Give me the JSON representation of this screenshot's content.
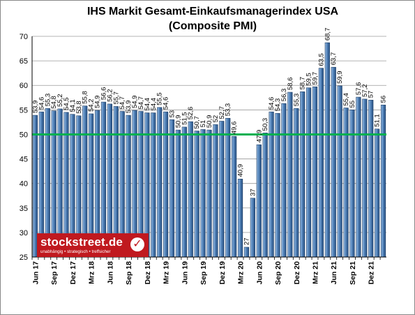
{
  "chart_data": {
    "type": "bar",
    "title_line1": "IHS Markit Gesamt-Einkaufsmanagerindex USA",
    "title_line2": "(Composite PMI)",
    "ylim": [
      25,
      70
    ],
    "yticks": [
      25,
      30,
      35,
      40,
      45,
      50,
      55,
      60,
      65,
      70
    ],
    "reference_line": 50,
    "grid": true,
    "colors": {
      "bar": "#3d6fa5",
      "bar_light": "#a9c6e6",
      "reference_line": "#00b050",
      "plot_bg": "#ffffff",
      "grid": "#9a9a9a"
    },
    "categories": [
      "Jun 17",
      "Jul 17",
      "Aug 17",
      "Sep 17",
      "Okt 17",
      "Nov 17",
      "Dez 17",
      "Jan 18",
      "Feb 18",
      "Mrz 18",
      "Apr 18",
      "Mai 18",
      "Jun 18",
      "Jul 18",
      "Aug 18",
      "Sep 18",
      "Okt 18",
      "Nov 18",
      "Dez 18",
      "Jan 19",
      "Feb 19",
      "Mrz 19",
      "Apr 19",
      "Mai 19",
      "Jun 19",
      "Jul 19",
      "Aug 19",
      "Sep 19",
      "Okt 19",
      "Nov 19",
      "Dez 19",
      "Jan 20",
      "Feb 20",
      "Mrz 20",
      "Apr 20",
      "Mai 20",
      "Jun 20",
      "Jul 20",
      "Aug 20",
      "Sep 20",
      "Okt 20",
      "Nov 20",
      "Dez 20",
      "Jan 21",
      "Feb 21",
      "Mrz 21",
      "Apr 21",
      "Mai 21",
      "Jun 21",
      "Jul 21",
      "Aug 21",
      "Sep 21",
      "Okt 21",
      "Nov 21",
      "Dez 21",
      "Jan 22",
      "Feb 22"
    ],
    "x_tick_labels": [
      "Jun 17",
      "Sep 17",
      "Dez 17",
      "Mrz 18",
      "Jun 18",
      "Sep 18",
      "Dez 18",
      "Mrz 19",
      "Jun 19",
      "Sep 19",
      "Dez 19",
      "Mrz 20",
      "Jun 20",
      "Sep 20",
      "Dez 20",
      "Mrz 21",
      "Jun 21",
      "Sep 21",
      "Dez 21"
    ],
    "values": [
      53.9,
      54.6,
      55.3,
      54.8,
      55.2,
      54.5,
      54.1,
      53.8,
      55.8,
      54.2,
      54.9,
      56.6,
      56.2,
      55.7,
      54.7,
      53.9,
      54.9,
      54.7,
      54.4,
      54.4,
      55.5,
      54.6,
      53.0,
      50.9,
      51.5,
      52.6,
      50.7,
      51.0,
      50.9,
      52.0,
      52.7,
      53.3,
      49.6,
      40.9,
      27.0,
      37.0,
      47.9,
      50.3,
      54.6,
      54.3,
      56.3,
      58.6,
      55.3,
      58.7,
      59.5,
      59.7,
      63.5,
      68.7,
      63.7,
      59.9,
      55.4,
      55.0,
      57.6,
      57.2,
      57.0,
      51.1,
      56.0
    ],
    "value_labels": [
      "53,9",
      "54,6",
      "55,3",
      "54,8",
      "55,2",
      "54,5",
      "54,1",
      "53,8",
      "55,8",
      "54,2",
      "54,9",
      "56,6",
      "56,2",
      "55,7",
      "54,7",
      "53,9",
      "54,9",
      "54,7",
      "54,4",
      "54,4",
      "55,5",
      "54,6",
      "53",
      "50,9",
      "51,5",
      "52,6",
      "50,7",
      "51",
      "50,9",
      "52",
      "52,7",
      "53,3",
      "49,6",
      "40,9",
      "27",
      "37",
      "47,9",
      "50,3",
      "54,6",
      "54,3",
      "56,3",
      "58,6",
      "55,3",
      "58,7",
      "59,5",
      "59,7",
      "63,5",
      "68,7",
      "63,7",
      "59,9",
      "55,4",
      "55",
      "57,6",
      "57,2",
      "57",
      "51,1",
      "56"
    ]
  },
  "logo": {
    "brand": "stockstreet.de",
    "tagline": "unabhängig • strategisch • treffsicher",
    "check_symbol": "✓"
  }
}
